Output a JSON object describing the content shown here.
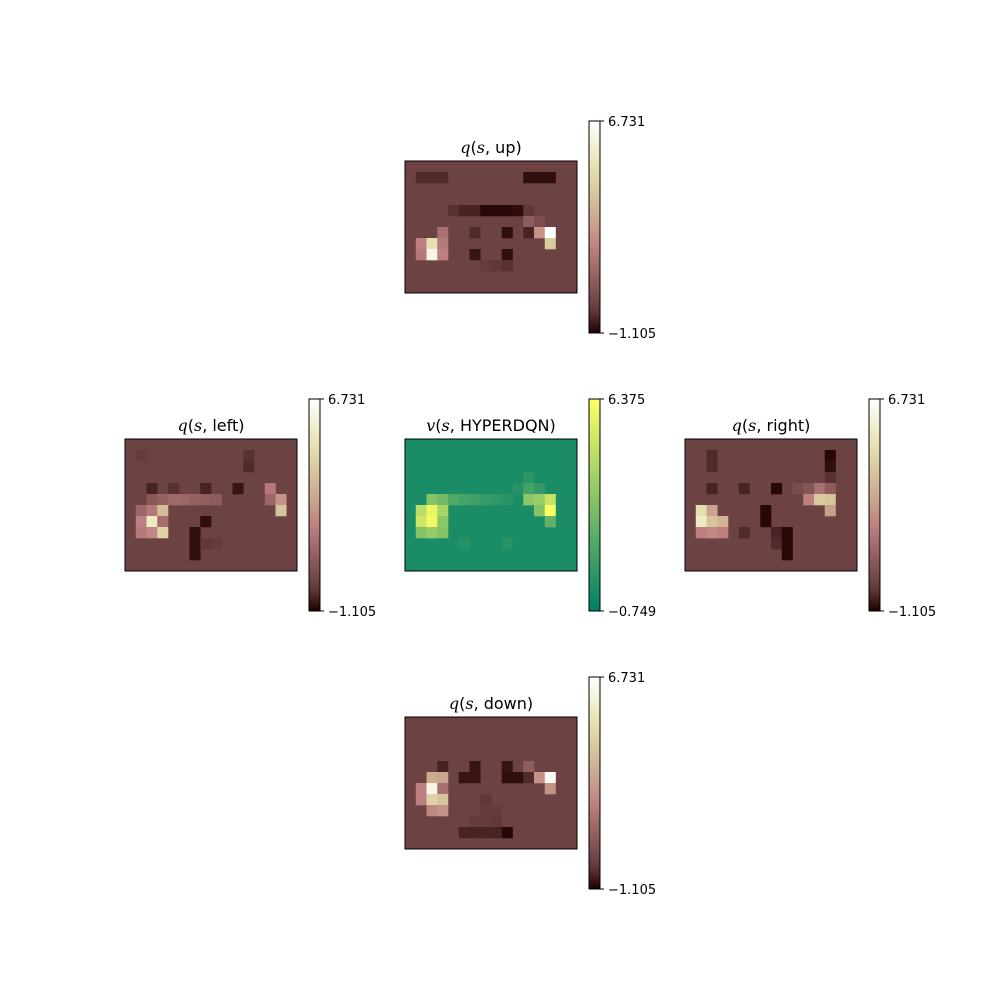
{
  "chart_data": [
    {
      "type": "heatmap",
      "panel": "up",
      "title": {
        "fn": "q",
        "arg": "s",
        "sep": ", ",
        "name": "up"
      },
      "rows": 12,
      "cols": 16,
      "colormap": "pink",
      "colorbar": {
        "max": 6.731,
        "min": -1.105,
        "max_label": "6.731",
        "min_label": "−1.105"
      },
      "cells": [
        [
          1,
          1,
          -0.5
        ],
        [
          1,
          2,
          -0.5
        ],
        [
          1,
          3,
          -0.5
        ],
        [
          1,
          11,
          -0.9
        ],
        [
          1,
          12,
          -0.9
        ],
        [
          1,
          13,
          -0.9
        ],
        [
          4,
          4,
          -0.4
        ],
        [
          4,
          5,
          -0.6
        ],
        [
          4,
          6,
          -0.6
        ],
        [
          4,
          7,
          -1.0
        ],
        [
          4,
          8,
          -1.0
        ],
        [
          4,
          9,
          -1.0
        ],
        [
          4,
          10,
          -0.9
        ],
        [
          4,
          11,
          -0.3
        ],
        [
          5,
          11,
          0.8
        ],
        [
          5,
          12,
          0.3
        ],
        [
          6,
          3,
          1.5
        ],
        [
          6,
          6,
          -0.5
        ],
        [
          6,
          9,
          -0.9
        ],
        [
          6,
          11,
          -0.6
        ],
        [
          6,
          12,
          2.5
        ],
        [
          6,
          13,
          6.7
        ],
        [
          7,
          1,
          2.0
        ],
        [
          7,
          2,
          5.0
        ],
        [
          7,
          3,
          1.8
        ],
        [
          7,
          13,
          4.2
        ],
        [
          8,
          1,
          1.8
        ],
        [
          8,
          2,
          6.2
        ],
        [
          8,
          3,
          2.0
        ],
        [
          8,
          6,
          -0.8
        ],
        [
          8,
          9,
          -0.9
        ],
        [
          9,
          7,
          -0.2
        ],
        [
          9,
          8,
          -0.3
        ],
        [
          9,
          9,
          -0.4
        ]
      ]
    },
    {
      "type": "heatmap",
      "panel": "left",
      "title": {
        "fn": "q",
        "arg": "s",
        "sep": ", ",
        "name": "left"
      },
      "rows": 12,
      "cols": 16,
      "colormap": "pink",
      "colorbar": {
        "max": 6.731,
        "min": -1.105,
        "max_label": "6.731",
        "min_label": "−1.105"
      },
      "cells": [
        [
          1,
          1,
          -0.2
        ],
        [
          1,
          11,
          -0.4
        ],
        [
          2,
          11,
          -0.5
        ],
        [
          4,
          2,
          -0.6
        ],
        [
          4,
          4,
          -0.4
        ],
        [
          4,
          7,
          -0.6
        ],
        [
          4,
          10,
          -0.8
        ],
        [
          4,
          13,
          1.8
        ],
        [
          5,
          2,
          0.7
        ],
        [
          5,
          3,
          1.0
        ],
        [
          5,
          4,
          1.3
        ],
        [
          5,
          5,
          1.2
        ],
        [
          5,
          6,
          1.0
        ],
        [
          5,
          7,
          0.9
        ],
        [
          5,
          8,
          0.8
        ],
        [
          5,
          13,
          1.2
        ],
        [
          5,
          14,
          2.5
        ],
        [
          6,
          1,
          1.2
        ],
        [
          6,
          2,
          1.8
        ],
        [
          6,
          3,
          3.8
        ],
        [
          6,
          14,
          4.0
        ],
        [
          7,
          1,
          2.0
        ],
        [
          7,
          2,
          5.5
        ],
        [
          7,
          3,
          1.4
        ],
        [
          7,
          7,
          -0.9
        ],
        [
          8,
          1,
          1.8
        ],
        [
          8,
          2,
          2.2
        ],
        [
          8,
          3,
          4.5
        ],
        [
          8,
          6,
          -0.9
        ],
        [
          9,
          6,
          -0.9
        ],
        [
          9,
          7,
          -0.3
        ],
        [
          9,
          8,
          -0.2
        ],
        [
          10,
          6,
          -0.9
        ]
      ]
    },
    {
      "type": "heatmap",
      "panel": "value",
      "title": {
        "fn": "v",
        "arg": "s",
        "sep": ", ",
        "name": "HYPERDQN"
      },
      "rows": 12,
      "cols": 16,
      "colormap": "summer",
      "colorbar": {
        "max": 6.375,
        "min": -0.749,
        "max_label": "6.375",
        "min_label": "−0.749"
      },
      "cells": [
        [
          3,
          11,
          0.4
        ],
        [
          4,
          10,
          0.3
        ],
        [
          4,
          11,
          1.2
        ],
        [
          4,
          12,
          0.7
        ],
        [
          5,
          2,
          3.0
        ],
        [
          5,
          3,
          2.5
        ],
        [
          5,
          4,
          1.5
        ],
        [
          5,
          5,
          1.2
        ],
        [
          5,
          6,
          1.0
        ],
        [
          5,
          7,
          0.8
        ],
        [
          5,
          8,
          0.6
        ],
        [
          5,
          9,
          0.4
        ],
        [
          5,
          11,
          3.2
        ],
        [
          5,
          12,
          3.5
        ],
        [
          5,
          13,
          4.8
        ],
        [
          6,
          1,
          4.5
        ],
        [
          6,
          2,
          5.8
        ],
        [
          6,
          3,
          4.0
        ],
        [
          6,
          12,
          3.0
        ],
        [
          6,
          13,
          6.3
        ],
        [
          7,
          1,
          5.0
        ],
        [
          7,
          2,
          6.0
        ],
        [
          7,
          3,
          3.2
        ],
        [
          7,
          13,
          2.0
        ],
        [
          8,
          1,
          3.0
        ],
        [
          8,
          2,
          3.5
        ],
        [
          8,
          3,
          3.0
        ],
        [
          9,
          5,
          0.3
        ],
        [
          9,
          9,
          0.3
        ]
      ]
    },
    {
      "type": "heatmap",
      "panel": "right",
      "title": {
        "fn": "q",
        "arg": "s",
        "sep": ", ",
        "name": "right"
      },
      "rows": 12,
      "cols": 16,
      "colormap": "pink",
      "colorbar": {
        "max": 6.731,
        "min": -1.105,
        "max_label": "6.731",
        "min_label": "−1.105"
      },
      "cells": [
        [
          1,
          2,
          -0.5
        ],
        [
          1,
          13,
          -1.0
        ],
        [
          2,
          2,
          -0.5
        ],
        [
          2,
          13,
          -0.9
        ],
        [
          3,
          13,
          -0.4
        ],
        [
          4,
          2,
          -0.6
        ],
        [
          4,
          5,
          -0.6
        ],
        [
          4,
          8,
          -1.0
        ],
        [
          4,
          10,
          0.3
        ],
        [
          4,
          11,
          0.6
        ],
        [
          4,
          12,
          1.5
        ],
        [
          4,
          13,
          0.8
        ],
        [
          5,
          11,
          2.0
        ],
        [
          5,
          12,
          4.2
        ],
        [
          5,
          13,
          4.0
        ],
        [
          6,
          1,
          5.0
        ],
        [
          6,
          2,
          3.0
        ],
        [
          6,
          7,
          -1.0
        ],
        [
          6,
          13,
          2.8
        ],
        [
          7,
          1,
          5.5
        ],
        [
          7,
          2,
          4.0
        ],
        [
          7,
          3,
          3.5
        ],
        [
          7,
          7,
          -1.0
        ],
        [
          8,
          1,
          2.0
        ],
        [
          8,
          2,
          2.3
        ],
        [
          8,
          3,
          2.0
        ],
        [
          8,
          5,
          -0.5
        ],
        [
          8,
          8,
          -0.6
        ],
        [
          8,
          9,
          -1.0
        ],
        [
          9,
          8,
          -0.5
        ],
        [
          9,
          9,
          -1.0
        ],
        [
          10,
          9,
          -1.0
        ]
      ]
    },
    {
      "type": "heatmap",
      "panel": "down",
      "title": {
        "fn": "q",
        "arg": "s",
        "sep": ", ",
        "name": "down"
      },
      "rows": 12,
      "cols": 16,
      "colormap": "pink",
      "colorbar": {
        "max": 6.731,
        "min": -1.105,
        "max_label": "6.731",
        "min_label": "−1.105"
      },
      "cells": [
        [
          4,
          3,
          -0.6
        ],
        [
          4,
          6,
          -0.8
        ],
        [
          4,
          9,
          -0.8
        ],
        [
          4,
          11,
          0.8
        ],
        [
          5,
          2,
          3.2
        ],
        [
          5,
          3,
          3.0
        ],
        [
          5,
          5,
          -0.8
        ],
        [
          5,
          6,
          -0.8
        ],
        [
          5,
          9,
          -0.9
        ],
        [
          5,
          10,
          -0.9
        ],
        [
          5,
          11,
          -0.5
        ],
        [
          5,
          12,
          2.5
        ],
        [
          5,
          13,
          6.5
        ],
        [
          6,
          1,
          2.0
        ],
        [
          6,
          2,
          6.2
        ],
        [
          6,
          3,
          1.5
        ],
        [
          6,
          13,
          2.5
        ],
        [
          7,
          1,
          2.0
        ],
        [
          7,
          2,
          4.5
        ],
        [
          7,
          3,
          4.0
        ],
        [
          7,
          7,
          -0.3
        ],
        [
          8,
          2,
          2.2
        ],
        [
          8,
          3,
          2.5
        ],
        [
          8,
          7,
          -0.2
        ],
        [
          8,
          8,
          -0.2
        ],
        [
          9,
          6,
          -0.2
        ],
        [
          9,
          7,
          -0.2
        ],
        [
          9,
          8,
          -0.3
        ],
        [
          10,
          5,
          -0.6
        ],
        [
          10,
          6,
          -0.6
        ],
        [
          10,
          7,
          -0.6
        ],
        [
          10,
          8,
          -0.6
        ],
        [
          10,
          9,
          -1.0
        ]
      ]
    }
  ]
}
